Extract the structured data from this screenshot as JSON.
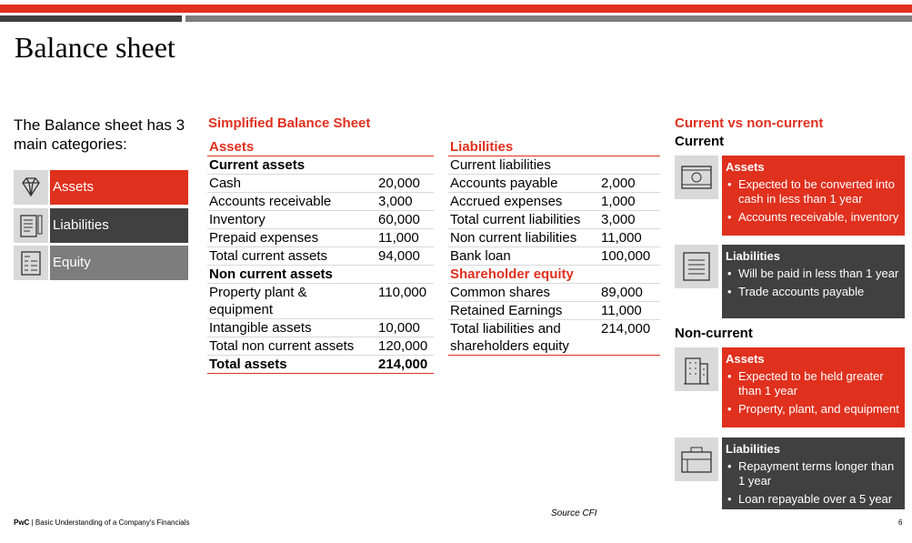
{
  "header": {
    "title": "Balance sheet"
  },
  "intro": {
    "text": "The Balance sheet has 3 main categories:",
    "categories": [
      "Assets",
      "Liabilities",
      "Equity"
    ]
  },
  "table": {
    "title": "Simplified Balance Sheet",
    "assets": {
      "heading": "Assets",
      "sections": [
        {
          "title": "Current assets",
          "rows": [
            [
              "Cash",
              "20,000"
            ],
            [
              "Accounts receivable",
              "3,000"
            ],
            [
              "Inventory",
              "60,000"
            ],
            [
              "Prepaid expenses",
              "11,000"
            ],
            [
              "Total current assets",
              "94,000"
            ]
          ]
        },
        {
          "title": "Non current assets",
          "rows": [
            [
              "Property plant & equipment",
              "110,000"
            ],
            [
              "Intangible assets",
              "10,000"
            ],
            [
              "Total non current assets",
              "120,000"
            ]
          ]
        }
      ],
      "total": [
        "Total assets",
        "214,000"
      ]
    },
    "liabilities": {
      "heading": "Liabilities",
      "rows": [
        [
          "Current liabilities",
          null
        ],
        [
          "Accounts payable",
          "2,000"
        ],
        [
          "Accrued expenses",
          "1,000"
        ],
        [
          "Total current liabilities",
          "3,000"
        ],
        [
          "Non current liabilities",
          "11,000"
        ],
        [
          "Bank loan",
          "100,000"
        ]
      ]
    },
    "equity": {
      "heading": "Shareholder equity",
      "rows": [
        [
          "Common shares",
          "89,000"
        ],
        [
          "Retained Earnings",
          "11,000"
        ],
        [
          "Total liabilities and shareholders equity",
          "214,000"
        ]
      ]
    }
  },
  "panel": {
    "title": "Current vs non-current",
    "groups": [
      {
        "heading": "Current",
        "cards": [
          {
            "title": "Assets",
            "bullets": [
              "Expected to be converted into cash in less than 1 year",
              "Accounts receivable, inventory"
            ]
          },
          {
            "title": "Liabilities",
            "bullets": [
              "Will be paid in less than 1 year",
              "Trade accounts payable"
            ]
          }
        ]
      },
      {
        "heading": "Non-current",
        "cards": [
          {
            "title": "Assets",
            "bullets": [
              "Expected to be held greater than 1 year",
              "Property, plant, and equipment"
            ]
          },
          {
            "title": "Liabilities",
            "bullets": [
              "Repayment terms longer than 1 year",
              "Loan repayable over a 5 year"
            ]
          }
        ]
      }
    ]
  },
  "footer": {
    "brand": "PwC",
    "text": "Basic Understanding of a Company's Financials",
    "source": "Source CFI",
    "page": "6"
  }
}
